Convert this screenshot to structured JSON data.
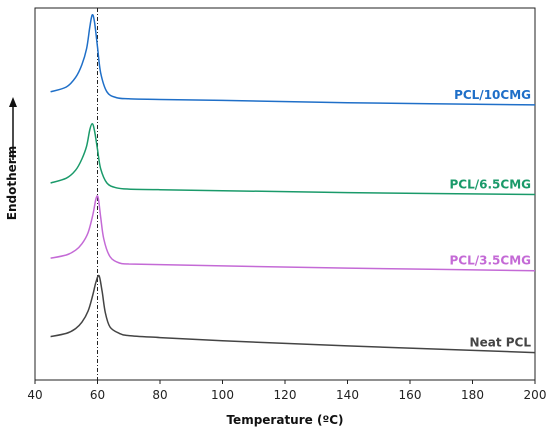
{
  "chart_data": {
    "type": "line",
    "xlabel": "Temperature (ºC)",
    "ylabel": "Endotherm",
    "xlim": [
      45,
      200
    ],
    "xticks": [
      40,
      60,
      80,
      100,
      120,
      140,
      160,
      180,
      200
    ],
    "reference_line_x": 60,
    "yticks_shown": false,
    "grid": false,
    "series": [
      {
        "name": "PCL/10CMG",
        "color": "#1f6fc8",
        "x": [
          45,
          50,
          53,
          55,
          56.5,
          57.5,
          58.3,
          59,
          60,
          61,
          63,
          66,
          70,
          80,
          100,
          140,
          200
        ],
        "y": [
          0.86,
          0.875,
          0.905,
          0.945,
          0.995,
          1.06,
          1.1,
          1.08,
          1.0,
          0.92,
          0.86,
          0.842,
          0.838,
          0.836,
          0.833,
          0.826,
          0.819
        ]
      },
      {
        "name": "PCL/6.5CMG",
        "color": "#1a9a6a",
        "x": [
          45,
          50,
          53,
          55,
          56.5,
          57.5,
          58.3,
          59,
          60,
          61,
          63,
          66,
          70,
          80,
          100,
          140,
          200
        ],
        "y": [
          0.575,
          0.59,
          0.615,
          0.65,
          0.69,
          0.74,
          0.76,
          0.74,
          0.68,
          0.62,
          0.575,
          0.56,
          0.556,
          0.554,
          0.551,
          0.545,
          0.539
        ]
      },
      {
        "name": "PCL/3.5CMG",
        "color": "#c46ad6",
        "x": [
          45,
          50,
          53,
          55,
          57,
          58.5,
          59.5,
          60.2,
          61,
          62,
          64,
          67,
          70,
          80,
          100,
          140,
          200
        ],
        "y": [
          0.34,
          0.35,
          0.365,
          0.385,
          0.42,
          0.475,
          0.525,
          0.53,
          0.47,
          0.4,
          0.345,
          0.325,
          0.322,
          0.32,
          0.316,
          0.309,
          0.301
        ]
      },
      {
        "name": "Neat PCL",
        "color": "#444444",
        "x": [
          45,
          50,
          53,
          55,
          57,
          58.5,
          59.5,
          60.5,
          61.5,
          62.5,
          64,
          67,
          70,
          80,
          100,
          140,
          200
        ],
        "y": [
          0.095,
          0.105,
          0.12,
          0.14,
          0.175,
          0.225,
          0.265,
          0.285,
          0.235,
          0.17,
          0.125,
          0.105,
          0.098,
          0.092,
          0.082,
          0.066,
          0.045
        ]
      }
    ]
  }
}
